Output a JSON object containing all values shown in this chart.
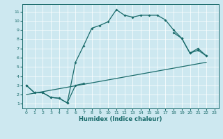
{
  "xlabel": "Humidex (Indice chaleur)",
  "bg_color": "#cde8f0",
  "line_color": "#1a6b6b",
  "xlim": [
    -0.5,
    23.5
  ],
  "ylim": [
    0.5,
    11.8
  ],
  "xticks": [
    0,
    1,
    2,
    3,
    4,
    5,
    6,
    7,
    8,
    9,
    10,
    11,
    12,
    13,
    14,
    15,
    16,
    17,
    18,
    19,
    20,
    21,
    22,
    23
  ],
  "yticks": [
    1,
    2,
    3,
    4,
    5,
    6,
    7,
    8,
    9,
    10,
    11
  ],
  "line1_x": [
    0,
    1,
    2,
    3,
    4,
    5,
    6,
    7,
    8,
    9,
    10,
    11,
    12,
    13,
    14,
    15,
    16,
    17,
    18,
    19,
    20,
    21,
    22
  ],
  "line1_y": [
    3.0,
    2.2,
    2.2,
    1.7,
    1.6,
    1.1,
    5.5,
    7.3,
    9.2,
    9.5,
    9.9,
    11.2,
    10.6,
    10.4,
    10.6,
    10.6,
    10.6,
    10.1,
    9.0,
    8.1,
    6.5,
    6.8,
    6.2
  ],
  "line2_x": [
    0,
    1,
    2,
    3,
    4,
    5,
    6,
    7
  ],
  "line2_y": [
    3.0,
    2.2,
    2.2,
    1.7,
    1.6,
    1.1,
    3.0,
    3.2
  ],
  "line2b_x": [
    18,
    19,
    20,
    21,
    22
  ],
  "line2b_y": [
    8.7,
    8.1,
    6.5,
    7.0,
    6.2
  ],
  "line3_x": [
    0,
    22
  ],
  "line3_y": [
    2.0,
    5.5
  ]
}
